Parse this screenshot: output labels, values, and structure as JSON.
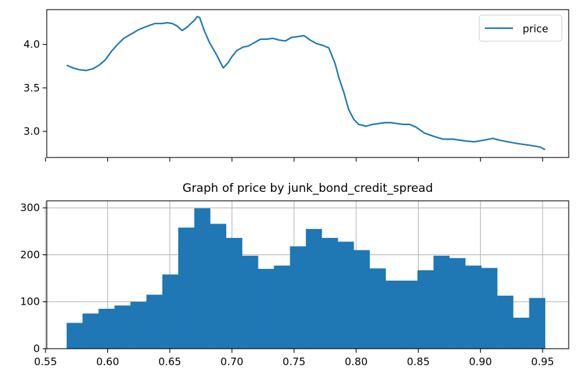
{
  "chart_data": [
    {
      "type": "line",
      "title": "",
      "xlabel": "",
      "ylabel": "",
      "ylim": [
        2.7,
        4.4
      ],
      "yticks": [
        3.0,
        3.5,
        4.0
      ],
      "ytick_labels": [
        "3.0",
        "3.5",
        "4.0"
      ],
      "grid": false,
      "legend": "top-right",
      "series": [
        {
          "name": "price",
          "color": "#1f77b4",
          "x": [
            0.567,
            0.572,
            0.577,
            0.583,
            0.588,
            0.593,
            0.598,
            0.603,
            0.608,
            0.613,
            0.619,
            0.625,
            0.632,
            0.638,
            0.644,
            0.648,
            0.652,
            0.656,
            0.66,
            0.664,
            0.667,
            0.67,
            0.672,
            0.674,
            0.678,
            0.682,
            0.688,
            0.693,
            0.697,
            0.7,
            0.704,
            0.709,
            0.713,
            0.718,
            0.723,
            0.728,
            0.733,
            0.738,
            0.743,
            0.748,
            0.753,
            0.758,
            0.763,
            0.768,
            0.773,
            0.778,
            0.783,
            0.786,
            0.79,
            0.794,
            0.798,
            0.802,
            0.808,
            0.813,
            0.818,
            0.823,
            0.828,
            0.833,
            0.838,
            0.843,
            0.848,
            0.855,
            0.863,
            0.87,
            0.878,
            0.888,
            0.895,
            0.903,
            0.91,
            0.915,
            0.922,
            0.93,
            0.94,
            0.948,
            0.952
          ],
          "values": [
            3.76,
            3.73,
            3.71,
            3.7,
            3.72,
            3.76,
            3.82,
            3.92,
            4.0,
            4.07,
            4.12,
            4.17,
            4.21,
            4.24,
            4.24,
            4.25,
            4.24,
            4.21,
            4.16,
            4.2,
            4.24,
            4.28,
            4.32,
            4.31,
            4.15,
            4.02,
            3.87,
            3.73,
            3.79,
            3.86,
            3.93,
            3.97,
            3.98,
            4.02,
            4.06,
            4.06,
            4.07,
            4.05,
            4.04,
            4.08,
            4.09,
            4.1,
            4.05,
            4.01,
            3.99,
            3.96,
            3.78,
            3.62,
            3.45,
            3.25,
            3.14,
            3.08,
            3.06,
            3.08,
            3.09,
            3.1,
            3.1,
            3.09,
            3.08,
            3.08,
            3.05,
            2.98,
            2.94,
            2.91,
            2.91,
            2.89,
            2.88,
            2.9,
            2.92,
            2.9,
            2.88,
            2.86,
            2.84,
            2.82,
            2.79
          ]
        }
      ]
    },
    {
      "type": "bar",
      "title": "Graph of price by junk_bond_credit_spread",
      "xlabel": "",
      "ylabel": "",
      "color": "#1f77b4",
      "grid": true,
      "xlim": [
        0.551,
        0.971
      ],
      "ylim": [
        0,
        315
      ],
      "xticks": [
        0.55,
        0.6,
        0.65,
        0.7,
        0.75,
        0.8,
        0.85,
        0.9,
        0.95
      ],
      "xtick_labels": [
        "0.55",
        "0.60",
        "0.65",
        "0.70",
        "0.75",
        "0.80",
        "0.85",
        "0.90",
        "0.95"
      ],
      "yticks": [
        0,
        100,
        200,
        300
      ],
      "ytick_labels": [
        "0",
        "100",
        "200",
        "300"
      ],
      "bin_edges": [
        0.567,
        0.5798,
        0.5927,
        0.6055,
        0.6183,
        0.6312,
        0.644,
        0.6568,
        0.6697,
        0.6825,
        0.6953,
        0.7082,
        0.721,
        0.7338,
        0.7467,
        0.7595,
        0.7723,
        0.7852,
        0.798,
        0.8108,
        0.8237,
        0.8365,
        0.8493,
        0.8622,
        0.875,
        0.8878,
        0.9007,
        0.9135,
        0.9263,
        0.9392,
        0.952
      ],
      "values": [
        55,
        75,
        85,
        92,
        100,
        115,
        158,
        258,
        299,
        266,
        236,
        198,
        170,
        177,
        218,
        255,
        236,
        228,
        210,
        171,
        145,
        145,
        167,
        198,
        193,
        177,
        172,
        113,
        66,
        108
      ]
    }
  ]
}
